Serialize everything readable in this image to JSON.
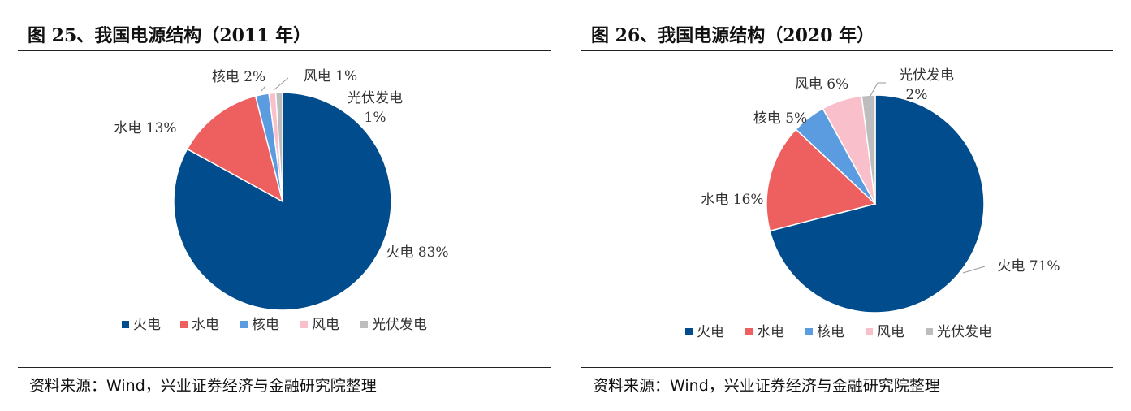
{
  "charts": [
    {
      "title": "图 25、我国电源结构（2011 年）",
      "source": "资料来源：Wind，兴业证券经济与金融研究院整理"
    },
    {
      "title": "图 26、我国电源结构（2020 年）",
      "source": "资料来源：Wind，兴业证券经济与金融研究院整理"
    }
  ],
  "chart_data": [
    {
      "type": "pie",
      "title": "图 25、我国电源结构（2011 年）",
      "categories": [
        "火电",
        "水电",
        "核电",
        "风电",
        "光伏发电"
      ],
      "values": [
        83,
        13,
        2,
        1,
        1
      ],
      "unit": "%",
      "colors": [
        "#004C8C",
        "#EE6060",
        "#5B9BE0",
        "#F9C0CB",
        "#BDBDBD"
      ],
      "labels": [
        {
          "category": "火电",
          "text": "火电 83%"
        },
        {
          "category": "水电",
          "text": "水电 13%"
        },
        {
          "category": "核电",
          "text": "核电 2%"
        },
        {
          "category": "风电",
          "text": "风电 1%"
        },
        {
          "category": "光伏发电",
          "text": "光伏发电",
          "text2": "1%"
        }
      ],
      "legend": {
        "position": "bottom",
        "items": [
          "火电",
          "水电",
          "核电",
          "风电",
          "光伏发电"
        ]
      }
    },
    {
      "type": "pie",
      "title": "图 26、我国电源结构（2020 年）",
      "categories": [
        "火电",
        "水电",
        "核电",
        "风电",
        "光伏发电"
      ],
      "values": [
        71,
        16,
        5,
        6,
        2
      ],
      "unit": "%",
      "colors": [
        "#004C8C",
        "#EE6060",
        "#5B9BE0",
        "#F9C0CB",
        "#BDBDBD"
      ],
      "labels": [
        {
          "category": "火电",
          "text": "火电 71%"
        },
        {
          "category": "水电",
          "text": "水电 16%"
        },
        {
          "category": "核电",
          "text": "核电 5%"
        },
        {
          "category": "风电",
          "text": "风电 6%"
        },
        {
          "category": "光伏发电",
          "text": "光伏发电",
          "text2": "2%"
        }
      ],
      "legend": {
        "position": "bottom",
        "items": [
          "火电",
          "水电",
          "核电",
          "风电",
          "光伏发电"
        ]
      }
    }
  ]
}
